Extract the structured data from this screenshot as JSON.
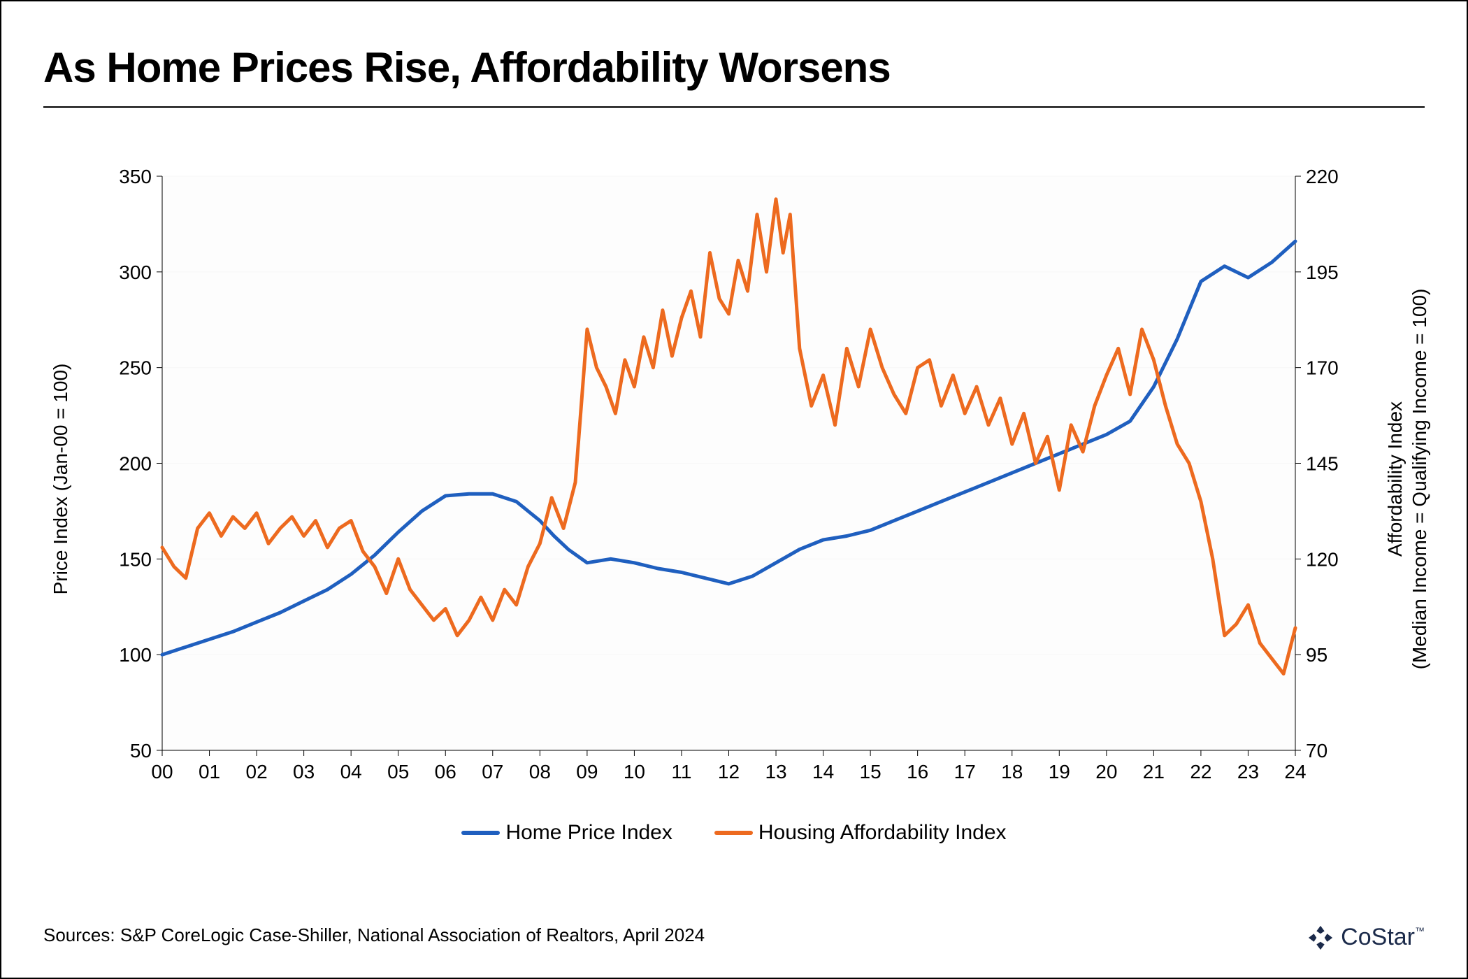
{
  "title": "As Home Prices Rise, Affordability Worsens",
  "sources": "Sources: S&P CoreLogic Case-Shiller, National Association of Realtors, April 2024",
  "logo_text": "CoStar",
  "logo_tm": "™",
  "chart": {
    "type": "dual-axis-line",
    "background_color": "#fdfdfd",
    "grid_color": "#f7f7f7",
    "axis_color": "#000000",
    "tick_font_size": 28,
    "axis_label_font_size": 28,
    "line_width": 5,
    "x": {
      "min": 2000,
      "max": 2024,
      "ticks": [
        2000,
        2001,
        2002,
        2003,
        2004,
        2005,
        2006,
        2007,
        2008,
        2009,
        2010,
        2011,
        2012,
        2013,
        2014,
        2015,
        2016,
        2017,
        2018,
        2019,
        2020,
        2021,
        2022,
        2023,
        2024
      ],
      "tick_labels": [
        "00",
        "01",
        "02",
        "03",
        "04",
        "05",
        "06",
        "07",
        "08",
        "09",
        "10",
        "11",
        "12",
        "13",
        "14",
        "15",
        "16",
        "17",
        "18",
        "19",
        "20",
        "21",
        "22",
        "23",
        "24"
      ]
    },
    "y_left": {
      "label": "Price Index (Jan-00 = 100)",
      "min": 50,
      "max": 350,
      "ticks": [
        50,
        100,
        150,
        200,
        250,
        300,
        350
      ]
    },
    "y_right": {
      "label": "Affordability Index\n(Median Income = Qualifying Income = 100)",
      "min": 70,
      "max": 220,
      "ticks": [
        70,
        95,
        120,
        145,
        170,
        195,
        220
      ]
    },
    "series": [
      {
        "name": "Home Price Index",
        "axis": "left",
        "color": "#1f5fbf",
        "points": [
          [
            2000.0,
            100
          ],
          [
            2000.5,
            104
          ],
          [
            2001.0,
            108
          ],
          [
            2001.5,
            112
          ],
          [
            2002.0,
            117
          ],
          [
            2002.5,
            122
          ],
          [
            2003.0,
            128
          ],
          [
            2003.5,
            134
          ],
          [
            2004.0,
            142
          ],
          [
            2004.5,
            152
          ],
          [
            2005.0,
            164
          ],
          [
            2005.5,
            175
          ],
          [
            2006.0,
            183
          ],
          [
            2006.5,
            184
          ],
          [
            2007.0,
            184
          ],
          [
            2007.5,
            180
          ],
          [
            2008.0,
            170
          ],
          [
            2008.3,
            162
          ],
          [
            2008.6,
            155
          ],
          [
            2009.0,
            148
          ],
          [
            2009.5,
            150
          ],
          [
            2010.0,
            148
          ],
          [
            2010.5,
            145
          ],
          [
            2011.0,
            143
          ],
          [
            2011.5,
            140
          ],
          [
            2012.0,
            137
          ],
          [
            2012.5,
            141
          ],
          [
            2013.0,
            148
          ],
          [
            2013.5,
            155
          ],
          [
            2014.0,
            160
          ],
          [
            2014.5,
            162
          ],
          [
            2015.0,
            165
          ],
          [
            2015.5,
            170
          ],
          [
            2016.0,
            175
          ],
          [
            2016.5,
            180
          ],
          [
            2017.0,
            185
          ],
          [
            2017.5,
            190
          ],
          [
            2018.0,
            195
          ],
          [
            2018.5,
            200
          ],
          [
            2019.0,
            205
          ],
          [
            2019.5,
            210
          ],
          [
            2020.0,
            215
          ],
          [
            2020.5,
            222
          ],
          [
            2021.0,
            240
          ],
          [
            2021.5,
            265
          ],
          [
            2022.0,
            295
          ],
          [
            2022.5,
            303
          ],
          [
            2023.0,
            297
          ],
          [
            2023.5,
            305
          ],
          [
            2024.0,
            316
          ]
        ]
      },
      {
        "name": "Housing Affordability Index",
        "axis": "right",
        "color": "#ed6a1f",
        "points": [
          [
            2000.0,
            123
          ],
          [
            2000.25,
            118
          ],
          [
            2000.5,
            115
          ],
          [
            2000.75,
            128
          ],
          [
            2001.0,
            132
          ],
          [
            2001.25,
            126
          ],
          [
            2001.5,
            131
          ],
          [
            2001.75,
            128
          ],
          [
            2002.0,
            132
          ],
          [
            2002.25,
            124
          ],
          [
            2002.5,
            128
          ],
          [
            2002.75,
            131
          ],
          [
            2003.0,
            126
          ],
          [
            2003.25,
            130
          ],
          [
            2003.5,
            123
          ],
          [
            2003.75,
            128
          ],
          [
            2004.0,
            130
          ],
          [
            2004.25,
            122
          ],
          [
            2004.5,
            118
          ],
          [
            2004.75,
            111
          ],
          [
            2005.0,
            120
          ],
          [
            2005.25,
            112
          ],
          [
            2005.5,
            108
          ],
          [
            2005.75,
            104
          ],
          [
            2006.0,
            107
          ],
          [
            2006.25,
            100
          ],
          [
            2006.5,
            104
          ],
          [
            2006.75,
            110
          ],
          [
            2007.0,
            104
          ],
          [
            2007.25,
            112
          ],
          [
            2007.5,
            108
          ],
          [
            2007.75,
            118
          ],
          [
            2008.0,
            124
          ],
          [
            2008.25,
            136
          ],
          [
            2008.5,
            128
          ],
          [
            2008.75,
            140
          ],
          [
            2009.0,
            180
          ],
          [
            2009.2,
            170
          ],
          [
            2009.4,
            165
          ],
          [
            2009.6,
            158
          ],
          [
            2009.8,
            172
          ],
          [
            2010.0,
            165
          ],
          [
            2010.2,
            178
          ],
          [
            2010.4,
            170
          ],
          [
            2010.6,
            185
          ],
          [
            2010.8,
            173
          ],
          [
            2011.0,
            183
          ],
          [
            2011.2,
            190
          ],
          [
            2011.4,
            178
          ],
          [
            2011.6,
            200
          ],
          [
            2011.8,
            188
          ],
          [
            2012.0,
            184
          ],
          [
            2012.2,
            198
          ],
          [
            2012.4,
            190
          ],
          [
            2012.6,
            210
          ],
          [
            2012.8,
            195
          ],
          [
            2013.0,
            214
          ],
          [
            2013.15,
            200
          ],
          [
            2013.3,
            210
          ],
          [
            2013.5,
            175
          ],
          [
            2013.75,
            160
          ],
          [
            2014.0,
            168
          ],
          [
            2014.25,
            155
          ],
          [
            2014.5,
            175
          ],
          [
            2014.75,
            165
          ],
          [
            2015.0,
            180
          ],
          [
            2015.25,
            170
          ],
          [
            2015.5,
            163
          ],
          [
            2015.75,
            158
          ],
          [
            2016.0,
            170
          ],
          [
            2016.25,
            172
          ],
          [
            2016.5,
            160
          ],
          [
            2016.75,
            168
          ],
          [
            2017.0,
            158
          ],
          [
            2017.25,
            165
          ],
          [
            2017.5,
            155
          ],
          [
            2017.75,
            162
          ],
          [
            2018.0,
            150
          ],
          [
            2018.25,
            158
          ],
          [
            2018.5,
            145
          ],
          [
            2018.75,
            152
          ],
          [
            2019.0,
            138
          ],
          [
            2019.25,
            155
          ],
          [
            2019.5,
            148
          ],
          [
            2019.75,
            160
          ],
          [
            2020.0,
            168
          ],
          [
            2020.25,
            175
          ],
          [
            2020.5,
            163
          ],
          [
            2020.75,
            180
          ],
          [
            2021.0,
            172
          ],
          [
            2021.25,
            160
          ],
          [
            2021.5,
            150
          ],
          [
            2021.75,
            145
          ],
          [
            2022.0,
            135
          ],
          [
            2022.25,
            120
          ],
          [
            2022.5,
            100
          ],
          [
            2022.75,
            103
          ],
          [
            2023.0,
            108
          ],
          [
            2023.25,
            98
          ],
          [
            2023.5,
            94
          ],
          [
            2023.75,
            90
          ],
          [
            2024.0,
            102
          ]
        ]
      }
    ],
    "legend": {
      "items": [
        {
          "label": "Home Price Index",
          "color": "#1f5fbf"
        },
        {
          "label": "Housing Affordability Index",
          "color": "#ed6a1f"
        }
      ]
    }
  }
}
